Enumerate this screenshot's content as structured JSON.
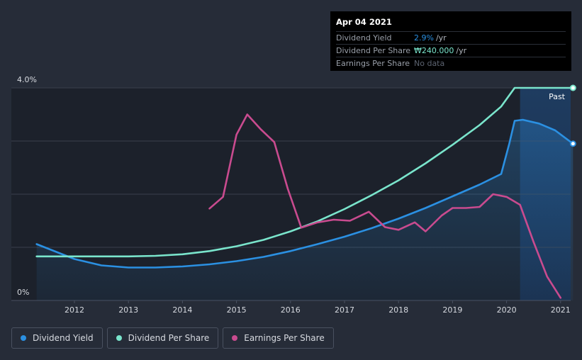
{
  "tooltip": {
    "date": "Apr 04 2021",
    "rows": [
      {
        "label": "Dividend Yield",
        "value": "2.9%",
        "unit": "/yr"
      },
      {
        "label": "Dividend Per Share",
        "value": "₩240.000",
        "unit": "/yr"
      },
      {
        "label": "Earnings Per Share",
        "value": "No data",
        "unit": ""
      }
    ]
  },
  "past_label": "Past",
  "legend": [
    {
      "label": "Dividend Yield",
      "color": "#2b90e2"
    },
    {
      "label": "Dividend Per Share",
      "color": "#7ae5cc"
    },
    {
      "label": "Earnings Per Share",
      "color": "#c94b8f"
    }
  ],
  "chart_data": {
    "type": "line",
    "x_ticks": [
      "2012",
      "2013",
      "2014",
      "2015",
      "2016",
      "2017",
      "2018",
      "2019",
      "2020",
      "2021"
    ],
    "y_tick_labels": [
      "4.0%",
      "0%"
    ],
    "xlim": [
      2011.25,
      2021.25
    ],
    "ylim": [
      0,
      4.0
    ],
    "grid": true,
    "series": [
      {
        "name": "Dividend Yield",
        "color": "#2b90e2",
        "points": [
          [
            2011.3,
            1.06
          ],
          [
            2011.7,
            0.9
          ],
          [
            2012.0,
            0.78
          ],
          [
            2012.5,
            0.66
          ],
          [
            2013.0,
            0.62
          ],
          [
            2013.5,
            0.62
          ],
          [
            2014.0,
            0.64
          ],
          [
            2014.5,
            0.68
          ],
          [
            2015.0,
            0.74
          ],
          [
            2015.5,
            0.82
          ],
          [
            2016.0,
            0.93
          ],
          [
            2016.5,
            1.06
          ],
          [
            2017.0,
            1.2
          ],
          [
            2017.5,
            1.36
          ],
          [
            2018.0,
            1.54
          ],
          [
            2018.5,
            1.74
          ],
          [
            2019.0,
            1.96
          ],
          [
            2019.5,
            2.18
          ],
          [
            2019.9,
            2.38
          ],
          [
            2020.05,
            2.95
          ],
          [
            2020.15,
            3.38
          ],
          [
            2020.3,
            3.4
          ],
          [
            2020.6,
            3.33
          ],
          [
            2020.9,
            3.2
          ],
          [
            2021.23,
            2.95
          ]
        ]
      },
      {
        "name": "Dividend Per Share",
        "color": "#7ae5cc",
        "points": [
          [
            2011.3,
            0.83
          ],
          [
            2012.0,
            0.83
          ],
          [
            2012.5,
            0.83
          ],
          [
            2013.0,
            0.83
          ],
          [
            2013.5,
            0.84
          ],
          [
            2014.0,
            0.87
          ],
          [
            2014.5,
            0.93
          ],
          [
            2015.0,
            1.02
          ],
          [
            2015.5,
            1.14
          ],
          [
            2016.0,
            1.3
          ],
          [
            2016.5,
            1.49
          ],
          [
            2017.0,
            1.72
          ],
          [
            2017.5,
            1.98
          ],
          [
            2018.0,
            2.26
          ],
          [
            2018.5,
            2.58
          ],
          [
            2019.0,
            2.93
          ],
          [
            2019.5,
            3.3
          ],
          [
            2019.9,
            3.65
          ],
          [
            2020.15,
            4.0
          ],
          [
            2020.5,
            4.0
          ],
          [
            2021.23,
            4.0
          ]
        ]
      },
      {
        "name": "Earnings Per Share",
        "color": "#c94b8f",
        "points": [
          [
            2014.5,
            1.73
          ],
          [
            2014.75,
            1.95
          ],
          [
            2015.0,
            3.12
          ],
          [
            2015.2,
            3.5
          ],
          [
            2015.45,
            3.22
          ],
          [
            2015.7,
            2.98
          ],
          [
            2015.95,
            2.1
          ],
          [
            2016.2,
            1.37
          ],
          [
            2016.5,
            1.47
          ],
          [
            2016.8,
            1.52
          ],
          [
            2017.1,
            1.5
          ],
          [
            2017.45,
            1.67
          ],
          [
            2017.75,
            1.38
          ],
          [
            2018.0,
            1.33
          ],
          [
            2018.3,
            1.47
          ],
          [
            2018.5,
            1.3
          ],
          [
            2018.8,
            1.6
          ],
          [
            2019.0,
            1.74
          ],
          [
            2019.25,
            1.74
          ],
          [
            2019.5,
            1.76
          ],
          [
            2019.75,
            2.0
          ],
          [
            2020.0,
            1.95
          ],
          [
            2020.25,
            1.8
          ],
          [
            2020.5,
            1.1
          ],
          [
            2020.75,
            0.45
          ],
          [
            2021.0,
            0.05
          ]
        ]
      }
    ]
  }
}
